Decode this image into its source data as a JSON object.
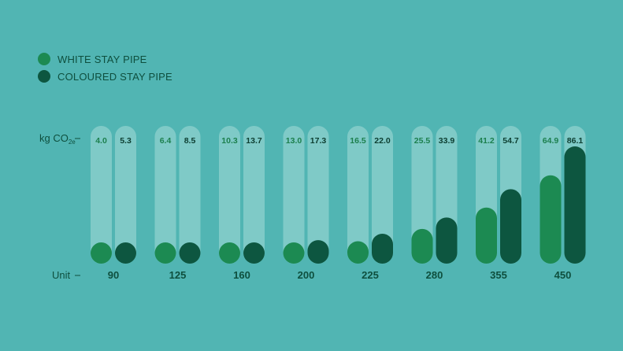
{
  "chart_data": {
    "type": "bar",
    "categories": [
      "90",
      "125",
      "160",
      "200",
      "225",
      "280",
      "355",
      "450"
    ],
    "series": [
      {
        "name": "WHITE STAY PIPE",
        "color": "#1c8a52",
        "values": [
          4.0,
          6.4,
          10.3,
          13.0,
          16.5,
          25.5,
          41.2,
          64.9
        ],
        "value_labels": [
          "4.0",
          "6.4",
          "10.3",
          "13.0",
          "16.5",
          "25.5",
          "41.2",
          "64.9"
        ]
      },
      {
        "name": "COLOURED STAY PIPE",
        "color": "#0d5640",
        "values": [
          5.3,
          8.5,
          13.7,
          17.3,
          22.0,
          33.9,
          54.7,
          86.1
        ],
        "value_labels": [
          "5.3",
          "8.5",
          "13.7",
          "17.3",
          "22.0",
          "33.9",
          "54.7",
          "86.1"
        ]
      }
    ],
    "ylabel_main": "kg CO",
    "ylabel_sub": "2e",
    "xlabel": "Unit",
    "ylim": [
      0,
      100
    ],
    "legend_position": "top-left",
    "grid": false,
    "colors": {
      "background": "#51b5b3",
      "track": "#7fcac7",
      "text": "#0e4f3e"
    }
  }
}
